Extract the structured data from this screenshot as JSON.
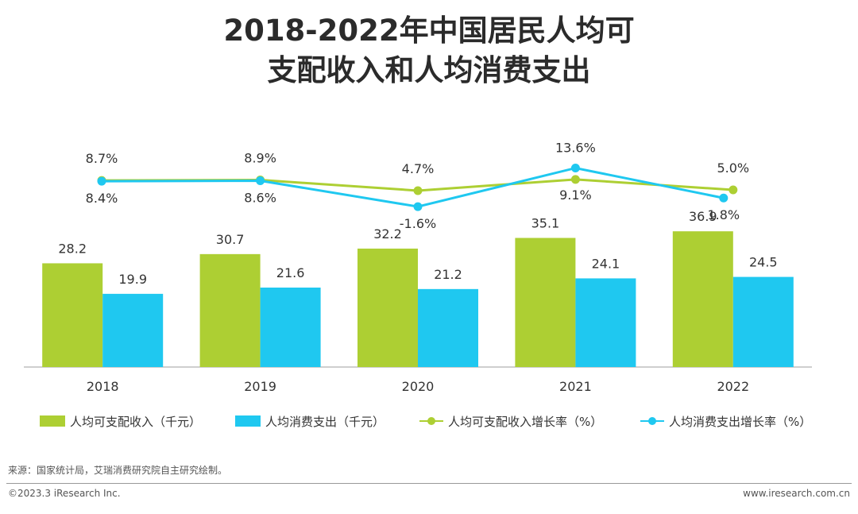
{
  "title": {
    "line1": "2018-2022年中国居民人均可",
    "line2": "支配收入和人均消费支出"
  },
  "colors": {
    "income": "#adcf33",
    "consumption": "#1fc8f0",
    "axis": "#bfbfbf"
  },
  "chart_data": {
    "type": "bar",
    "categories": [
      "2018",
      "2019",
      "2020",
      "2021",
      "2022"
    ],
    "series": [
      {
        "name": "人均可支配收入（千元）",
        "kind": "bar",
        "values": [
          28.2,
          30.7,
          32.2,
          35.1,
          36.9
        ],
        "value_labels": [
          "28.2",
          "30.7",
          "32.2",
          "35.1",
          "36.9"
        ]
      },
      {
        "name": "人均消费支出（千元）",
        "kind": "bar",
        "values": [
          19.9,
          21.6,
          21.2,
          24.1,
          24.5
        ],
        "value_labels": [
          "19.9",
          "21.6",
          "21.2",
          "24.1",
          "24.5"
        ]
      },
      {
        "name": "人均可支配收入增长率（%）",
        "kind": "line",
        "values": [
          8.7,
          8.9,
          4.7,
          9.1,
          5.0
        ],
        "value_labels": [
          "8.7%",
          "8.9%",
          "4.7%",
          "9.1%",
          "5.0%"
        ]
      },
      {
        "name": "人均消费支出增长率（%）",
        "kind": "line",
        "values": [
          8.4,
          8.6,
          -1.6,
          13.6,
          1.8
        ],
        "value_labels": [
          "8.4%",
          "8.6%",
          "-1.6%",
          "13.6%",
          "1.8%"
        ]
      }
    ],
    "bar_axis_range": [
      0,
      40
    ],
    "rate_axis_range": [
      -10,
      25
    ],
    "grid": false,
    "legend_position": "bottom"
  },
  "legend": {
    "income": "人均可支配收入（千元）",
    "consumption": "人均消费支出（千元）",
    "income_rate": "人均可支配收入增长率（%）",
    "consumption_rate": "人均消费支出增长率（%）"
  },
  "footer": {
    "source": "来源：国家统计局，艾瑞消费研究院自主研究绘制。",
    "copyright": "©2023.3 iResearch Inc.",
    "website": "www.iresearch.com.cn"
  }
}
